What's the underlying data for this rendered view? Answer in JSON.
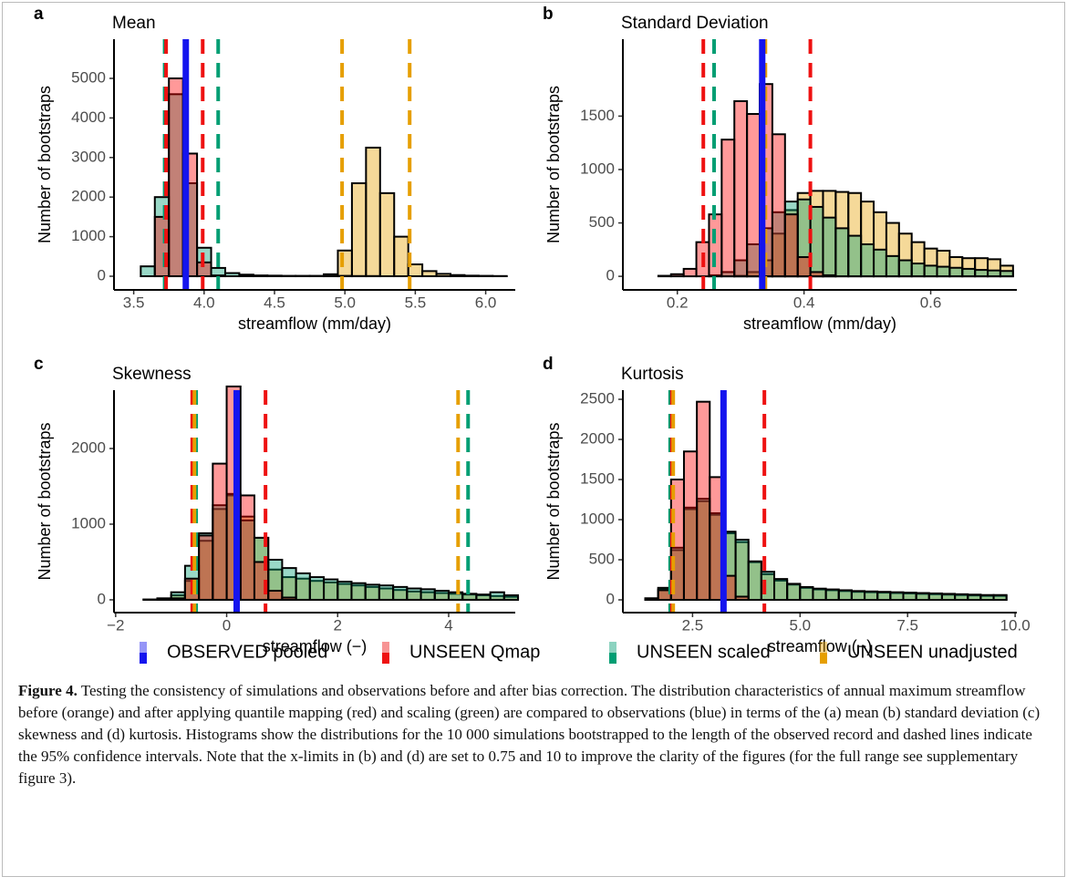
{
  "chart_data": [
    {
      "type": "histogram",
      "panel_label": "a",
      "title": "Mean",
      "xlabel": "streamflow (mm/day)",
      "ylabel": "Number of bootstraps",
      "xlim": [
        3.36,
        6.21
      ],
      "ylim": [
        -345,
        5990
      ],
      "xticks": [
        3.5,
        {
          "value": 4,
          "label": "4.0"
        },
        4.5,
        {
          "value": 5,
          "label": "5.0"
        },
        5.5,
        {
          "value": 6,
          "label": "6.0"
        }
      ],
      "yticks": [
        0,
        1000,
        2000,
        3000,
        4000,
        5000
      ],
      "bins": [
        3.55,
        3.65,
        3.75,
        3.85,
        3.95,
        4.05,
        4.15,
        4.25,
        4.35,
        4.45,
        4.55,
        4.65,
        4.75,
        4.85,
        4.95,
        5.05,
        5.15,
        5.25,
        5.35,
        5.45,
        5.55,
        5.65,
        5.75,
        5.85,
        5.95,
        6.05,
        6.15
      ],
      "series": [
        {
          "color": "#e69f00",
          "values": [
            0,
            0,
            0,
            0,
            0,
            0,
            0,
            0,
            0,
            0,
            0,
            0,
            0,
            50,
            650,
            2350,
            3250,
            2100,
            1000,
            300,
            130,
            60,
            30,
            15,
            10,
            5
          ]
        },
        {
          "color": "#009e73",
          "values": [
            250,
            2000,
            4600,
            2350,
            720,
            210,
            80,
            40,
            20,
            15,
            10,
            10,
            10,
            10,
            10,
            5,
            5,
            0,
            0,
            0,
            0,
            0,
            0,
            0,
            0,
            0
          ]
        },
        {
          "color": "#ff0000",
          "values": [
            0,
            1500,
            5000,
            3100,
            350,
            20,
            0,
            0,
            0,
            0,
            0,
            0,
            0,
            0,
            0,
            0,
            0,
            0,
            0,
            0,
            0,
            0,
            0,
            0,
            0,
            0
          ]
        }
      ],
      "lines": [
        {
          "color": "#009e73",
          "dashed": true,
          "values": [
            3.72,
            4.1
          ]
        },
        {
          "color": "#ee1111",
          "dashed": true,
          "values": [
            3.73,
            3.99
          ]
        },
        {
          "color": "#e69f00",
          "dashed": true,
          "values": [
            4.98,
            5.46
          ]
        },
        {
          "color": "#1414ee",
          "dashed": false,
          "values": [
            3.87
          ]
        }
      ]
    },
    {
      "type": "histogram",
      "panel_label": "b",
      "title": "Standard Deviation",
      "xlabel": "streamflow (mm/day)",
      "ylabel": "Number of bootstraps",
      "xlim": [
        0.114,
        0.736
      ],
      "ylim": [
        -127,
        2220
      ],
      "xticks": [
        0.2,
        0.4,
        0.6
      ],
      "yticks": [
        0,
        500,
        1000,
        1500
      ],
      "bins": [
        0.15,
        0.17,
        0.19,
        0.21,
        0.23,
        0.25,
        0.27,
        0.29,
        0.31,
        0.33,
        0.35,
        0.37,
        0.39,
        0.41,
        0.43,
        0.45,
        0.47,
        0.49,
        0.51,
        0.53,
        0.55,
        0.57,
        0.59,
        0.61,
        0.63,
        0.65,
        0.67,
        0.69,
        0.71,
        0.73
      ],
      "series": [
        {
          "color": "#e69f00",
          "values": [
            0,
            0,
            0,
            0,
            0,
            0,
            0,
            5,
            40,
            150,
            400,
            620,
            780,
            800,
            800,
            790,
            780,
            700,
            600,
            500,
            400,
            320,
            260,
            240,
            180,
            170,
            170,
            160,
            100
          ]
        },
        {
          "color": "#009e73",
          "values": [
            0,
            0,
            0,
            0,
            0,
            10,
            40,
            150,
            300,
            450,
            600,
            700,
            720,
            650,
            550,
            450,
            380,
            300,
            250,
            190,
            150,
            120,
            100,
            90,
            80,
            70,
            60,
            55,
            50
          ]
        },
        {
          "color": "#ff0000",
          "values": [
            0,
            5,
            20,
            70,
            320,
            580,
            1280,
            1640,
            1520,
            1800,
            1330,
            580,
            180,
            40,
            10,
            0,
            0,
            0,
            0,
            0,
            0,
            0,
            0,
            0,
            0,
            0,
            0,
            0,
            0
          ]
        }
      ],
      "lines": [
        {
          "color": "#009e73",
          "dashed": true,
          "values": [
            0.258,
            0.337
          ]
        },
        {
          "color": "#ee1111",
          "dashed": true,
          "values": [
            0.241,
            0.41
          ]
        },
        {
          "color": "#e69f00",
          "dashed": true,
          "values": [
            0.339
          ]
        },
        {
          "color": "#1414ee",
          "dashed": false,
          "values": [
            0.334
          ]
        }
      ]
    },
    {
      "type": "histogram",
      "panel_label": "c",
      "title": "Skewness",
      "xlabel": "streamflow (−)",
      "ylabel": "Number of bootstraps",
      "xlim": [
        -2.03,
        5.2
      ],
      "ylim": [
        -169,
        2771
      ],
      "xticks": [
        {
          "value": -2,
          "label": "−2"
        },
        0,
        2,
        4
      ],
      "yticks": [
        0,
        1000,
        2000
      ],
      "bins": [
        -1.75,
        -1.5,
        -1.25,
        -1,
        -0.75,
        -0.5,
        -0.25,
        0,
        0.25,
        0.5,
        0.75,
        1,
        1.25,
        1.5,
        1.75,
        2,
        2.25,
        2.5,
        2.75,
        3,
        3.25,
        3.5,
        3.75,
        4,
        4.25,
        4.5,
        4.75,
        5,
        5.25
      ],
      "series": [
        {
          "color": "#e69f00",
          "values": [
            0,
            0,
            5,
            60,
            250,
            780,
            1200,
            1380,
            1100,
            820,
            400,
            300,
            280,
            250,
            230,
            210,
            190,
            170,
            150,
            130,
            110,
            100,
            90,
            80,
            70,
            60,
            50,
            40
          ]
        },
        {
          "color": "#009e73",
          "values": [
            0,
            5,
            20,
            100,
            450,
            880,
            1250,
            1400,
            1050,
            820,
            530,
            420,
            350,
            300,
            270,
            240,
            220,
            200,
            190,
            170,
            150,
            140,
            120,
            100,
            80,
            70,
            100,
            60
          ]
        },
        {
          "color": "#ff0000",
          "values": [
            0,
            0,
            0,
            20,
            280,
            850,
            1800,
            2820,
            1380,
            500,
            120,
            30,
            0,
            0,
            0,
            0,
            0,
            0,
            0,
            0,
            0,
            0,
            0,
            0,
            0,
            0,
            0,
            0
          ]
        }
      ],
      "lines": [
        {
          "color": "#009e73",
          "dashed": true,
          "values": [
            -0.55,
            4.35
          ]
        },
        {
          "color": "#ee1111",
          "dashed": true,
          "values": [
            -0.62,
            0.7
          ]
        },
        {
          "color": "#e69f00",
          "dashed": true,
          "values": [
            -0.58,
            4.17
          ]
        },
        {
          "color": "#1414ee",
          "dashed": false,
          "values": [
            0.18
          ]
        }
      ]
    },
    {
      "type": "histogram",
      "panel_label": "d",
      "title": "Kurtosis",
      "xlabel": "streamflow (−)",
      "ylabel": "Number of bootstraps",
      "xlim": [
        0.88,
        10.04
      ],
      "ylim": [
        -159,
        2614
      ],
      "xticks": [
        2.5,
        {
          "value": 5,
          "label": "5.0"
        },
        7.5,
        {
          "value": 10,
          "label": "10.0"
        }
      ],
      "yticks": [
        0,
        500,
        1000,
        1500,
        2000,
        2500
      ],
      "bins": [
        1.4,
        1.7,
        2,
        2.3,
        2.6,
        2.9,
        3.2,
        3.5,
        3.8,
        4.1,
        4.4,
        4.7,
        5,
        5.3,
        5.6,
        5.9,
        6.2,
        6.5,
        6.8,
        7.1,
        7.4,
        7.7,
        8,
        8.3,
        8.6,
        8.9,
        9.2,
        9.5,
        9.8
      ],
      "series": [
        {
          "color": "#e69f00",
          "values": [
            10,
            130,
            620,
            1130,
            1230,
            1060,
            830,
            720,
            470,
            320,
            240,
            190,
            150,
            130,
            120,
            110,
            100,
            95,
            90,
            85,
            80,
            75,
            70,
            65,
            60,
            55,
            50,
            50
          ]
        },
        {
          "color": "#009e73",
          "values": [
            10,
            150,
            650,
            1150,
            1260,
            1080,
            850,
            750,
            480,
            350,
            260,
            200,
            160,
            140,
            130,
            120,
            110,
            105,
            100,
            95,
            90,
            85,
            80,
            75,
            70,
            65,
            60,
            60
          ]
        },
        {
          "color": "#ff0000",
          "values": [
            20,
            120,
            1500,
            1850,
            2470,
            1530,
            300,
            40,
            0,
            0,
            0,
            0,
            0,
            0,
            0,
            0,
            0,
            0,
            0,
            0,
            0,
            0,
            0,
            0,
            0,
            0,
            0,
            0
          ]
        }
      ],
      "lines": [
        {
          "color": "#009e73",
          "dashed": true,
          "values": [
            1.98
          ]
        },
        {
          "color": "#ee1111",
          "dashed": true,
          "values": [
            2.02,
            4.17
          ]
        },
        {
          "color": "#e69f00",
          "dashed": true,
          "values": [
            2.05
          ]
        },
        {
          "color": "#1414ee",
          "dashed": false,
          "values": [
            3.22
          ]
        }
      ]
    }
  ],
  "legend": [
    {
      "name": "OBSERVED pooled",
      "color": "#1414ee"
    },
    {
      "name": "UNSEEN Qmap",
      "color": "#ee1111"
    },
    {
      "name": "UNSEEN scaled",
      "color": "#009e73"
    },
    {
      "name": "UNSEEN unadjusted",
      "color": "#e69f00"
    }
  ],
  "caption": {
    "label": "Figure 4.",
    "text": "Testing the consistency of simulations and observations before and after bias correction. The distribution characteristics of annual maximum streamflow before (orange) and after applying quantile mapping (red) and scaling (green) are compared to observations (blue) in terms of the (a) mean (b) standard deviation (c) skewness and (d) kurtosis. Histograms show the distributions for the 10 000 simulations bootstrapped to the length of the observed record and dashed lines indicate the 95% confidence intervals. Note that the x-limits in (b) and (d) are set to 0.75 and 10 to improve the clarity of the figures (for the full range see supplementary figure 3)."
  }
}
